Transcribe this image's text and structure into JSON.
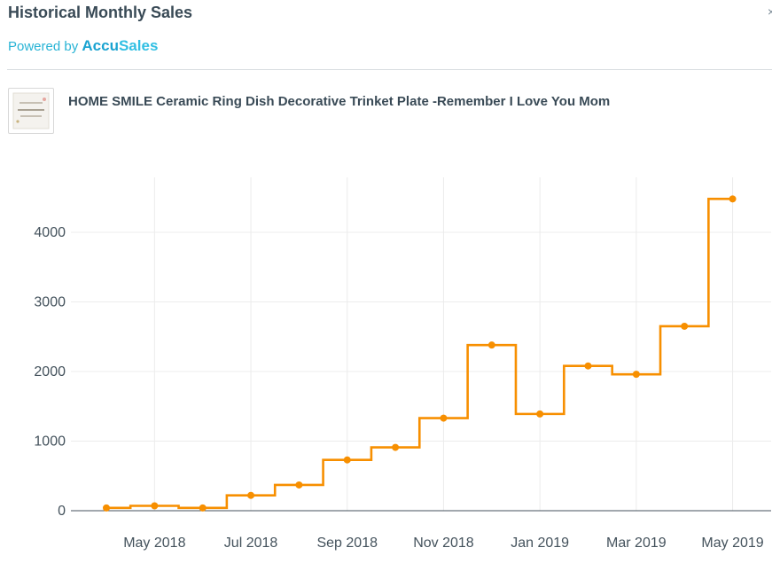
{
  "header": {
    "title": "Historical Monthly Sales",
    "close_symbol": "×"
  },
  "powered_by": {
    "prefix": "Powered by ",
    "brand_part1": "Accu",
    "brand_part2": "Sales"
  },
  "product": {
    "title": "HOME SMILE Ceramic Ring Dish Decorative Trinket Plate -Remember I Love You Mom"
  },
  "colors": {
    "line": "#f78f00",
    "brand": "#27b3d5",
    "text": "#394a56"
  },
  "chart_data": {
    "type": "line",
    "step": "center",
    "x": [
      "2018-04",
      "2018-05",
      "2018-06",
      "2018-07",
      "2018-08",
      "2018-09",
      "2018-10",
      "2018-11",
      "2018-12",
      "2019-01",
      "2019-02",
      "2019-03",
      "2019-04",
      "2019-05"
    ],
    "series": [
      {
        "values": [
          40,
          70,
          40,
          220,
          370,
          730,
          910,
          1330,
          2380,
          1390,
          2080,
          1960,
          2650,
          4480
        ]
      }
    ],
    "x_tick_labels": [
      "May 2018",
      "Jul 2018",
      "Sep 2018",
      "Nov 2018",
      "Jan 2019",
      "Mar 2019",
      "May 2019"
    ],
    "y_ticks": [
      0,
      1000,
      2000,
      3000,
      4000
    ],
    "ylim": [
      0,
      4800
    ],
    "grid": true,
    "xlabel": "",
    "ylabel": ""
  }
}
